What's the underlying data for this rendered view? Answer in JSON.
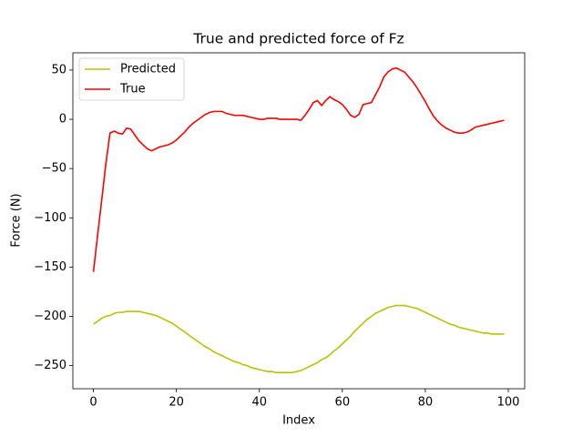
{
  "chart_data": {
    "type": "line",
    "title": "True and predicted force of Fz",
    "x_label": "Index",
    "y_label": "Force (N)",
    "x": [
      0,
      1,
      2,
      3,
      4,
      5,
      6,
      7,
      8,
      9,
      10,
      11,
      12,
      13,
      14,
      15,
      16,
      17,
      18,
      19,
      20,
      21,
      22,
      23,
      24,
      25,
      26,
      27,
      28,
      29,
      30,
      31,
      32,
      33,
      34,
      35,
      36,
      37,
      38,
      39,
      40,
      41,
      42,
      43,
      44,
      45,
      46,
      47,
      48,
      49,
      50,
      51,
      52,
      53,
      54,
      55,
      56,
      57,
      58,
      59,
      60,
      61,
      62,
      63,
      64,
      65,
      66,
      67,
      68,
      69,
      70,
      71,
      72,
      73,
      74,
      75,
      76,
      77,
      78,
      79,
      80,
      81,
      82,
      83,
      84,
      85,
      86,
      87,
      88,
      89,
      90,
      91,
      92,
      93,
      94,
      95,
      96,
      97,
      98,
      99
    ],
    "series": [
      {
        "name": "Predicted",
        "color": "#bfbf00",
        "values": [
          -208,
          -205,
          -202,
          -200,
          -199,
          -197,
          -196,
          -196,
          -195,
          -195,
          -195,
          -195,
          -196,
          -197,
          -198,
          -199,
          -201,
          -203,
          -205,
          -207,
          -210,
          -213,
          -216,
          -219,
          -222,
          -225,
          -228,
          -231,
          -233,
          -236,
          -238,
          -240,
          -242,
          -244,
          -246,
          -247,
          -249,
          -250,
          -252,
          -253,
          -254,
          -255,
          -256,
          -256,
          -257,
          -257,
          -257,
          -257,
          -257,
          -256,
          -255,
          -253,
          -251,
          -249,
          -247,
          -244,
          -242,
          -239,
          -235,
          -232,
          -228,
          -224,
          -220,
          -215,
          -211,
          -207,
          -203,
          -200,
          -197,
          -195,
          -193,
          -191,
          -190,
          -189,
          -189,
          -189,
          -190,
          -191,
          -192,
          -194,
          -196,
          -198,
          -200,
          -202,
          -204,
          -206,
          -208,
          -209,
          -211,
          -212,
          -213,
          -214,
          -215,
          -216,
          -217,
          -217,
          -218,
          -218,
          -218,
          -218
        ]
      },
      {
        "name": "True",
        "color": "#ff0000",
        "values": [
          -155,
          -118,
          -82,
          -45,
          -14,
          -12,
          -14,
          -15,
          -9,
          -10,
          -16,
          -22,
          -26,
          -30,
          -32,
          -30,
          -28,
          -27,
          -26,
          -24,
          -21,
          -17,
          -13,
          -8,
          -4,
          -1,
          2,
          5,
          7,
          8,
          8,
          8,
          6,
          5,
          4,
          4,
          4,
          3,
          2,
          1,
          0,
          0,
          1,
          1,
          1,
          0,
          0,
          0,
          0,
          0,
          -1,
          4,
          10,
          17,
          19,
          14,
          19,
          23,
          20,
          18,
          15,
          10,
          4,
          2,
          5,
          15,
          16,
          17,
          25,
          33,
          43,
          48,
          51,
          52,
          50,
          48,
          43,
          38,
          32,
          25,
          18,
          10,
          3,
          -2,
          -6,
          -9,
          -11,
          -13,
          -14,
          -14,
          -13,
          -11,
          -8,
          -7,
          -6,
          -5,
          -4,
          -3,
          -2,
          -1
        ]
      }
    ],
    "xlim": [
      -4.95,
      103.95
    ],
    "xticks": [
      0,
      20,
      40,
      60,
      80,
      100
    ],
    "ylim": [
      -273.5,
      67.5
    ],
    "yticks": [
      {
        "value": -250,
        "label": "−250"
      },
      {
        "value": -200,
        "label": "−200"
      },
      {
        "value": -150,
        "label": "−150"
      },
      {
        "value": -100,
        "label": "−100"
      },
      {
        "value": -50,
        "label": "−50"
      },
      0,
      50
    ],
    "legend": "upper left",
    "grid": false
  }
}
